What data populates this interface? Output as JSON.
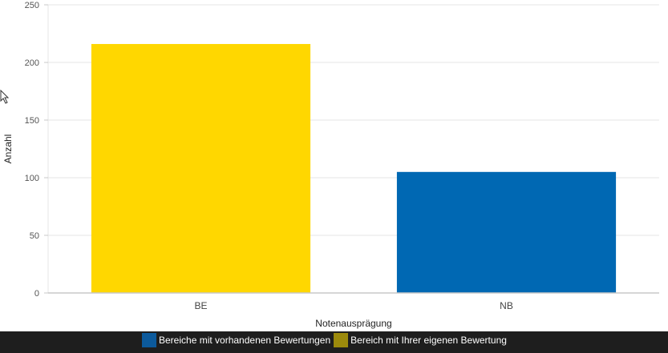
{
  "chart_data": {
    "type": "bar",
    "categories": [
      "BE",
      "NB"
    ],
    "values": [
      216,
      105
    ],
    "bar_colors": [
      "#FFD700",
      "#0068B3"
    ],
    "xlabel": "Notenausprägung",
    "ylabel": "Anzahl",
    "ylim": [
      0,
      250
    ],
    "yticks": [
      0,
      50,
      100,
      150,
      200,
      250
    ],
    "grid": true,
    "legend_position": "bottom",
    "legend": [
      {
        "label": "Bereiche mit vorhandenen Bewertungen",
        "color": "#0C5A9C"
      },
      {
        "label": "Bereich mit Ihrer eigenen Bewertung",
        "color": "#9C8A0C"
      }
    ]
  },
  "icons": {
    "cursor": "mouse-pointer-icon"
  }
}
